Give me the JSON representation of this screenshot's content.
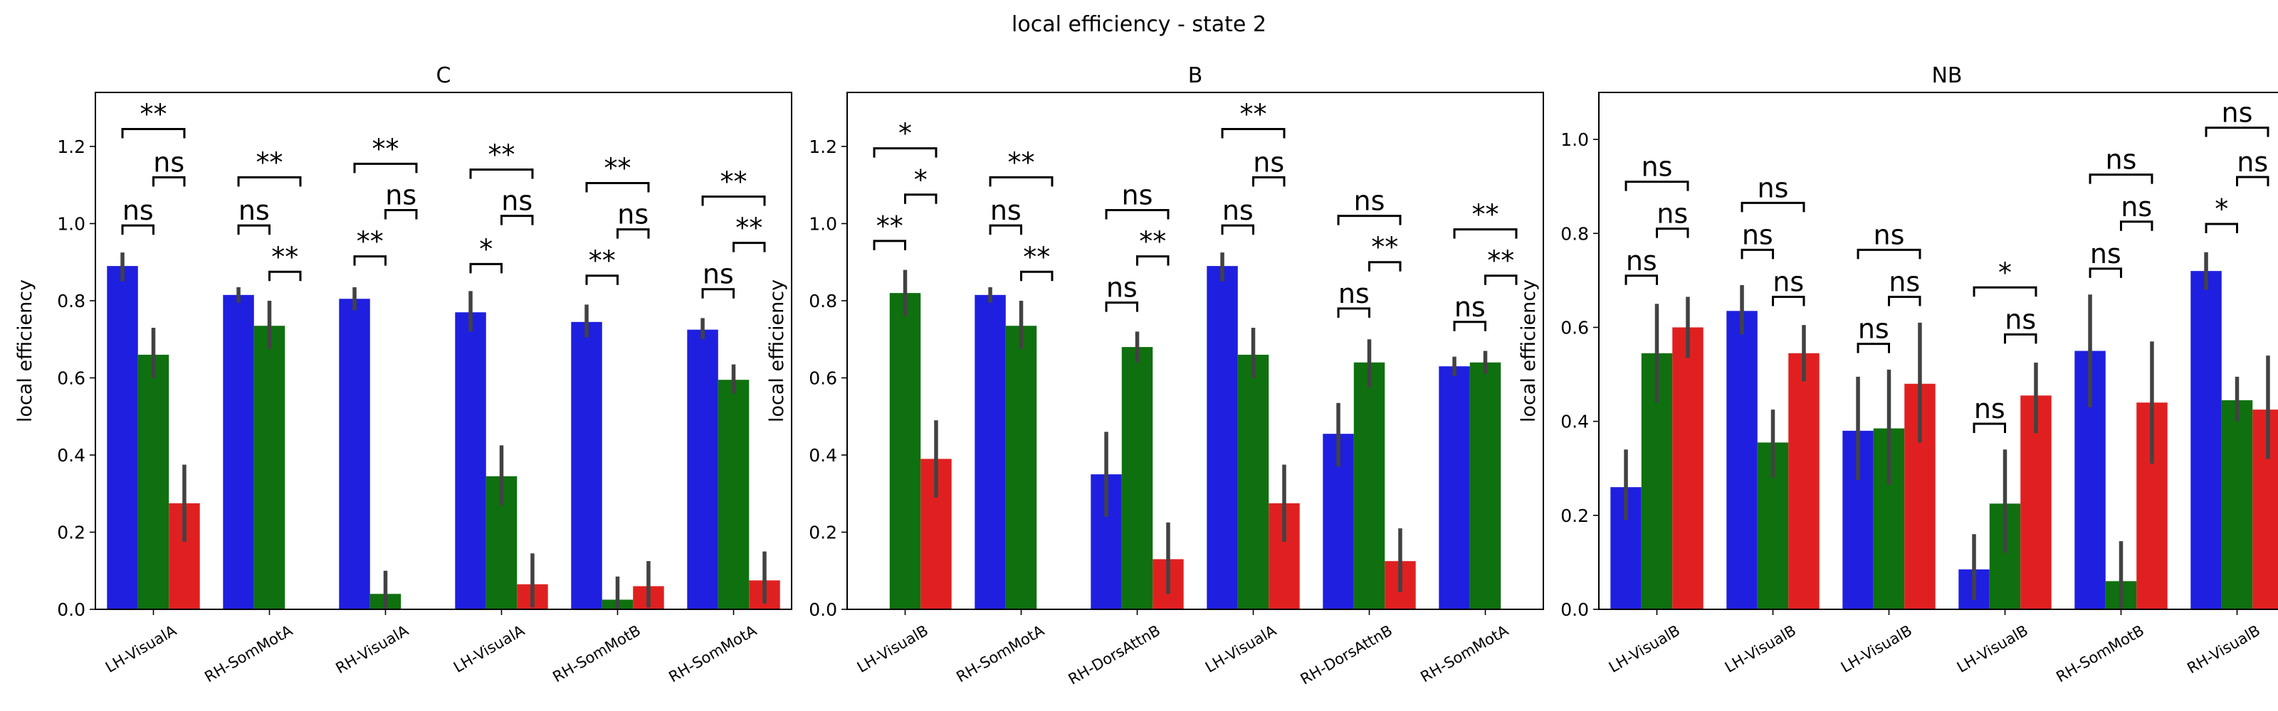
{
  "figure": {
    "title": "local efficiency - state 2"
  },
  "colors": {
    "series": [
      "#1f1fe0",
      "#0f700f",
      "#e02020"
    ],
    "errorbar": "#424242",
    "axes": "#000000"
  },
  "chart_data": [
    {
      "type": "bar",
      "title": "C",
      "xlabel": "",
      "ylabel": "local efficiency",
      "ylim": [
        0,
        1.34
      ],
      "yticks": [
        "0.0",
        "0.2",
        "0.4",
        "0.6",
        "0.8",
        "1.0",
        "1.2"
      ],
      "categories": [
        "LH-VisualA",
        "RH-SomMotA",
        "RH-VisualA",
        "LH-VisualA",
        "RH-SomMotB",
        "RH-SomMotA"
      ],
      "series": [
        {
          "values": [
            0.89,
            0.815,
            0.805,
            0.77,
            0.745,
            0.725
          ],
          "err_low": [
            0.85,
            0.795,
            0.775,
            0.72,
            0.705,
            0.7
          ],
          "err_high": [
            0.925,
            0.835,
            0.835,
            0.825,
            0.79,
            0.755
          ]
        },
        {
          "values": [
            0.66,
            0.735,
            0.04,
            0.345,
            0.025,
            0.595
          ],
          "err_low": [
            0.6,
            0.675,
            0.0,
            0.27,
            0.0,
            0.56
          ],
          "err_high": [
            0.73,
            0.8,
            0.1,
            0.425,
            0.085,
            0.635
          ]
        },
        {
          "values": [
            0.275,
            0.0,
            0.0,
            0.065,
            0.06,
            0.075
          ],
          "err_low": [
            0.175,
            null,
            null,
            0.005,
            0.005,
            0.015
          ],
          "err_high": [
            0.375,
            null,
            null,
            0.145,
            0.125,
            0.15
          ]
        }
      ],
      "annotations": [
        {
          "group": 0,
          "pair": [
            0,
            1
          ],
          "label": "ns",
          "y": 0.995
        },
        {
          "group": 0,
          "pair": [
            1,
            2
          ],
          "label": "ns",
          "y": 1.12
        },
        {
          "group": 0,
          "pair": [
            0,
            2
          ],
          "label": "**",
          "y": 1.245
        },
        {
          "group": 1,
          "pair": [
            0,
            1
          ],
          "label": "ns",
          "y": 0.995
        },
        {
          "group": 1,
          "pair": [
            1,
            2
          ],
          "label": "**",
          "y": 0.875
        },
        {
          "group": 1,
          "pair": [
            0,
            2
          ],
          "label": "**",
          "y": 1.12
        },
        {
          "group": 2,
          "pair": [
            0,
            1
          ],
          "label": "**",
          "y": 0.915
        },
        {
          "group": 2,
          "pair": [
            1,
            2
          ],
          "label": "ns",
          "y": 1.035
        },
        {
          "group": 2,
          "pair": [
            0,
            2
          ],
          "label": "**",
          "y": 1.155
        },
        {
          "group": 3,
          "pair": [
            0,
            1
          ],
          "label": "*",
          "y": 0.895
        },
        {
          "group": 3,
          "pair": [
            1,
            2
          ],
          "label": "ns",
          "y": 1.02
        },
        {
          "group": 3,
          "pair": [
            0,
            2
          ],
          "label": "**",
          "y": 1.14
        },
        {
          "group": 4,
          "pair": [
            0,
            1
          ],
          "label": "**",
          "y": 0.865
        },
        {
          "group": 4,
          "pair": [
            1,
            2
          ],
          "label": "ns",
          "y": 0.985
        },
        {
          "group": 4,
          "pair": [
            0,
            2
          ],
          "label": "**",
          "y": 1.105
        },
        {
          "group": 5,
          "pair": [
            0,
            1
          ],
          "label": "ns",
          "y": 0.83
        },
        {
          "group": 5,
          "pair": [
            1,
            2
          ],
          "label": "**",
          "y": 0.95
        },
        {
          "group": 5,
          "pair": [
            0,
            2
          ],
          "label": "**",
          "y": 1.07
        }
      ]
    },
    {
      "type": "bar",
      "title": "B",
      "xlabel": "",
      "ylabel": "local efficiency",
      "ylim": [
        0,
        1.34
      ],
      "yticks": [
        "0.0",
        "0.2",
        "0.4",
        "0.6",
        "0.8",
        "1.0",
        "1.2"
      ],
      "categories": [
        "LH-VisualB",
        "RH-SomMotA",
        "RH-DorsAttnB",
        "LH-VisualA",
        "RH-DorsAttnB",
        "RH-SomMotA"
      ],
      "series": [
        {
          "values": [
            0.0,
            0.815,
            0.35,
            0.89,
            0.455,
            0.63
          ],
          "err_low": [
            null,
            0.795,
            0.24,
            0.85,
            0.37,
            0.605
          ],
          "err_high": [
            null,
            0.835,
            0.46,
            0.925,
            0.535,
            0.655
          ]
        },
        {
          "values": [
            0.82,
            0.735,
            0.68,
            0.66,
            0.64,
            0.64
          ],
          "err_low": [
            0.76,
            0.675,
            0.64,
            0.6,
            0.575,
            0.61
          ],
          "err_high": [
            0.88,
            0.8,
            0.72,
            0.73,
            0.7,
            0.67
          ]
        },
        {
          "values": [
            0.39,
            0.0,
            0.13,
            0.275,
            0.125,
            0.0
          ],
          "err_low": [
            0.29,
            null,
            0.04,
            0.175,
            0.045,
            null
          ],
          "err_high": [
            0.49,
            null,
            0.225,
            0.375,
            0.21,
            null
          ]
        }
      ],
      "annotations": [
        {
          "group": 0,
          "pair": [
            0,
            1
          ],
          "label": "**",
          "y": 0.955
        },
        {
          "group": 0,
          "pair": [
            1,
            2
          ],
          "label": "*",
          "y": 1.075
        },
        {
          "group": 0,
          "pair": [
            0,
            2
          ],
          "label": "*",
          "y": 1.195
        },
        {
          "group": 1,
          "pair": [
            0,
            1
          ],
          "label": "ns",
          "y": 0.995
        },
        {
          "group": 1,
          "pair": [
            1,
            2
          ],
          "label": "**",
          "y": 0.875
        },
        {
          "group": 1,
          "pair": [
            0,
            2
          ],
          "label": "**",
          "y": 1.12
        },
        {
          "group": 2,
          "pair": [
            0,
            1
          ],
          "label": "ns",
          "y": 0.795
        },
        {
          "group": 2,
          "pair": [
            1,
            2
          ],
          "label": "**",
          "y": 0.915
        },
        {
          "group": 2,
          "pair": [
            0,
            2
          ],
          "label": "ns",
          "y": 1.035
        },
        {
          "group": 3,
          "pair": [
            0,
            1
          ],
          "label": "ns",
          "y": 0.995
        },
        {
          "group": 3,
          "pair": [
            1,
            2
          ],
          "label": "ns",
          "y": 1.12
        },
        {
          "group": 3,
          "pair": [
            0,
            2
          ],
          "label": "**",
          "y": 1.245
        },
        {
          "group": 4,
          "pair": [
            0,
            1
          ],
          "label": "ns",
          "y": 0.78
        },
        {
          "group": 4,
          "pair": [
            1,
            2
          ],
          "label": "**",
          "y": 0.9
        },
        {
          "group": 4,
          "pair": [
            0,
            2
          ],
          "label": "ns",
          "y": 1.02
        },
        {
          "group": 5,
          "pair": [
            0,
            1
          ],
          "label": "ns",
          "y": 0.745
        },
        {
          "group": 5,
          "pair": [
            1,
            2
          ],
          "label": "**",
          "y": 0.865
        },
        {
          "group": 5,
          "pair": [
            0,
            2
          ],
          "label": "**",
          "y": 0.985
        }
      ]
    },
    {
      "type": "bar",
      "title": "NB",
      "xlabel": "",
      "ylabel": "local efficiency",
      "ylim": [
        0,
        1.1
      ],
      "yticks": [
        "0.0",
        "0.2",
        "0.4",
        "0.6",
        "0.8",
        "1.0"
      ],
      "categories": [
        "LH-VisualB",
        "LH-VisualB",
        "LH-VisualB",
        "LH-VisualB",
        "RH-SomMotB",
        "RH-VisualB"
      ],
      "series": [
        {
          "values": [
            0.26,
            0.635,
            0.38,
            0.085,
            0.55,
            0.72
          ],
          "err_low": [
            0.19,
            0.585,
            0.275,
            0.02,
            0.43,
            0.68
          ],
          "err_high": [
            0.34,
            0.69,
            0.495,
            0.16,
            0.67,
            0.76
          ]
        },
        {
          "values": [
            0.545,
            0.355,
            0.385,
            0.225,
            0.06,
            0.445
          ],
          "err_low": [
            0.44,
            0.28,
            0.265,
            0.12,
            0.0,
            0.4
          ],
          "err_high": [
            0.65,
            0.425,
            0.51,
            0.34,
            0.145,
            0.495
          ]
        },
        {
          "values": [
            0.6,
            0.545,
            0.48,
            0.455,
            0.44,
            0.425
          ],
          "err_low": [
            0.535,
            0.485,
            0.355,
            0.375,
            0.31,
            0.32
          ],
          "err_high": [
            0.665,
            0.605,
            0.61,
            0.525,
            0.57,
            0.54
          ]
        }
      ],
      "annotations": [
        {
          "group": 0,
          "pair": [
            0,
            1
          ],
          "label": "ns",
          "y": 0.71
        },
        {
          "group": 0,
          "pair": [
            1,
            2
          ],
          "label": "ns",
          "y": 0.81
        },
        {
          "group": 0,
          "pair": [
            0,
            2
          ],
          "label": "ns",
          "y": 0.91
        },
        {
          "group": 1,
          "pair": [
            0,
            1
          ],
          "label": "ns",
          "y": 0.765
        },
        {
          "group": 1,
          "pair": [
            1,
            2
          ],
          "label": "ns",
          "y": 0.665
        },
        {
          "group": 1,
          "pair": [
            0,
            2
          ],
          "label": "ns",
          "y": 0.865
        },
        {
          "group": 2,
          "pair": [
            0,
            1
          ],
          "label": "ns",
          "y": 0.565
        },
        {
          "group": 2,
          "pair": [
            1,
            2
          ],
          "label": "ns",
          "y": 0.665
        },
        {
          "group": 2,
          "pair": [
            0,
            2
          ],
          "label": "ns",
          "y": 0.765
        },
        {
          "group": 3,
          "pair": [
            0,
            1
          ],
          "label": "ns",
          "y": 0.395
        },
        {
          "group": 3,
          "pair": [
            1,
            2
          ],
          "label": "ns",
          "y": 0.585
        },
        {
          "group": 3,
          "pair": [
            0,
            2
          ],
          "label": "*",
          "y": 0.685
        },
        {
          "group": 4,
          "pair": [
            0,
            1
          ],
          "label": "ns",
          "y": 0.725
        },
        {
          "group": 4,
          "pair": [
            1,
            2
          ],
          "label": "ns",
          "y": 0.825
        },
        {
          "group": 4,
          "pair": [
            0,
            2
          ],
          "label": "ns",
          "y": 0.925
        },
        {
          "group": 5,
          "pair": [
            0,
            1
          ],
          "label": "*",
          "y": 0.82
        },
        {
          "group": 5,
          "pair": [
            1,
            2
          ],
          "label": "ns",
          "y": 0.92
        },
        {
          "group": 5,
          "pair": [
            0,
            2
          ],
          "label": "ns",
          "y": 1.025
        }
      ]
    }
  ]
}
